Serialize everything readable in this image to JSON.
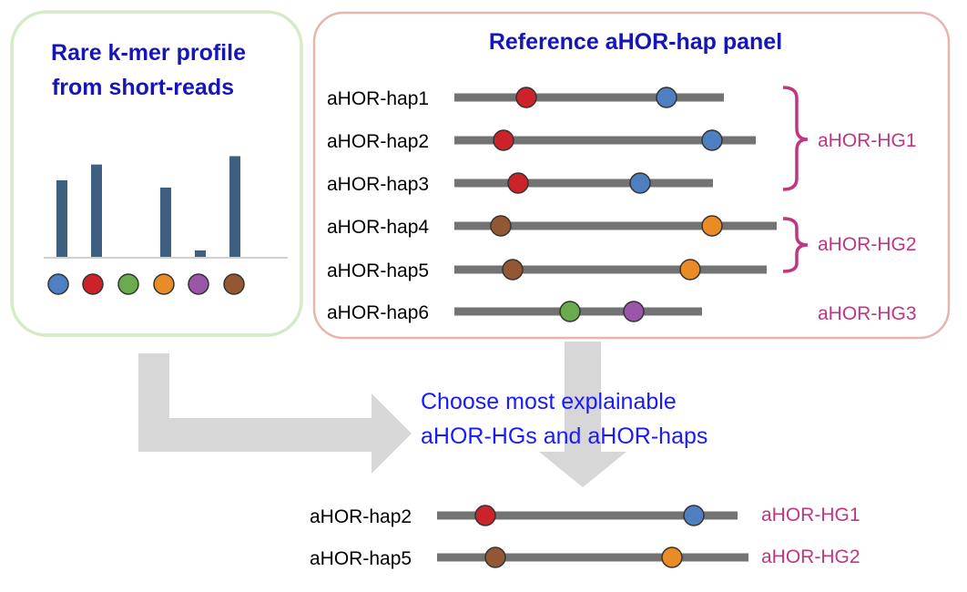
{
  "left_panel": {
    "title_line1": "Rare k-mer profile",
    "title_line2": "from short-reads",
    "bars": [
      {
        "color": "#3d6080",
        "value": 0.74
      },
      {
        "color": "#3d6080",
        "value": 0.89
      },
      {
        "color": "#3d6080",
        "value": 0.0
      },
      {
        "color": "#3d6080",
        "value": 0.67
      },
      {
        "color": "#3d6080",
        "value": 0.07
      },
      {
        "color": "#3d6080",
        "value": 0.97
      }
    ],
    "kmers": [
      {
        "color": "#4e7fc0",
        "icon": "blue-kmer-dot"
      },
      {
        "color": "#cc2229",
        "icon": "red-kmer-dot"
      },
      {
        "color": "#6aab4f",
        "icon": "green-kmer-dot"
      },
      {
        "color": "#ea8c25",
        "icon": "orange-kmer-dot"
      },
      {
        "color": "#9a56a8",
        "icon": "purple-kmer-dot"
      },
      {
        "color": "#935734",
        "icon": "brown-kmer-dot"
      }
    ]
  },
  "right_panel": {
    "title": "Reference aHOR-hap panel",
    "haps": [
      {
        "label": "aHOR-hap1",
        "dots": [
          "#cc2229",
          "#4e7fc0"
        ]
      },
      {
        "label": "aHOR-hap2",
        "dots": [
          "#cc2229",
          "#4e7fc0"
        ]
      },
      {
        "label": "aHOR-hap3",
        "dots": [
          "#cc2229",
          "#4e7fc0"
        ]
      },
      {
        "label": "aHOR-hap4",
        "dots": [
          "#935734",
          "#ea8c25"
        ]
      },
      {
        "label": "aHOR-hap5",
        "dots": [
          "#935734",
          "#ea8c25"
        ]
      },
      {
        "label": "aHOR-hap6",
        "dots": [
          "#6aab4f",
          "#9a56a8"
        ]
      }
    ],
    "groups": [
      {
        "label": "aHOR-HG1"
      },
      {
        "label": "aHOR-HG2"
      },
      {
        "label": "aHOR-HG3"
      }
    ]
  },
  "middle_text": {
    "line1": "Choose most explainable",
    "line2": "aHOR-HGs and aHOR-haps"
  },
  "result": [
    {
      "label": "aHOR-hap2",
      "group": "aHOR-HG1",
      "dots": [
        "#cc2229",
        "#4e7fc0"
      ]
    },
    {
      "label": "aHOR-hap5",
      "group": "aHOR-HG2",
      "dots": [
        "#935734",
        "#ea8c25"
      ]
    }
  ],
  "colors": {
    "title_blue": "#1616b8",
    "choose_blue": "#1a1aff",
    "group_magenta": "#c0367f",
    "bar_gray": "#737373",
    "arrow_gray": "#d7d7d7",
    "left_border": "#d6eac5",
    "right_border": "#e8b4ae"
  }
}
